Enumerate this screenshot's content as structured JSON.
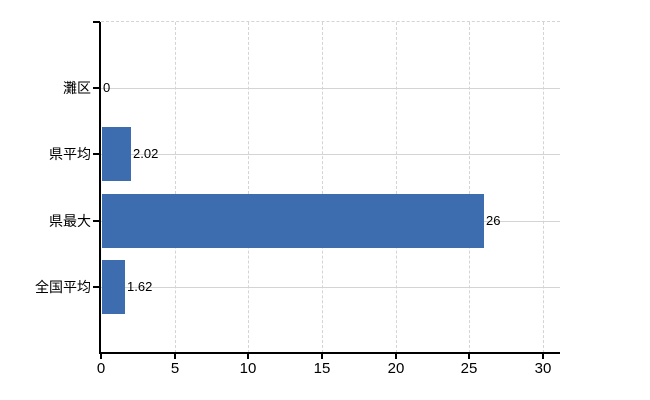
{
  "chart_data": {
    "type": "bar",
    "orientation": "horizontal",
    "title": "",
    "xlabel": "",
    "ylabel": "",
    "categories": [
      "灘区",
      "県平均",
      "県最大",
      "全国平均"
    ],
    "values": [
      0,
      2.02,
      26,
      1.62
    ],
    "value_labels": [
      "0",
      "2.02",
      "26",
      "1.62"
    ],
    "x_ticks": [
      0,
      5,
      10,
      15,
      20,
      25,
      30
    ],
    "x_tick_labels": [
      "0",
      "5",
      "10",
      "15",
      "20",
      "25",
      "30"
    ],
    "xlim": [
      0,
      31.2
    ],
    "grid": {
      "vertical": "dashed",
      "horizontal": "solid",
      "top_border": "dashed"
    },
    "legend": "none",
    "colors": {
      "bar": "#3d6caf",
      "grid": "#d4d4d4",
      "axis": "#000000",
      "text": "#000000",
      "background": "#ffffff"
    }
  }
}
